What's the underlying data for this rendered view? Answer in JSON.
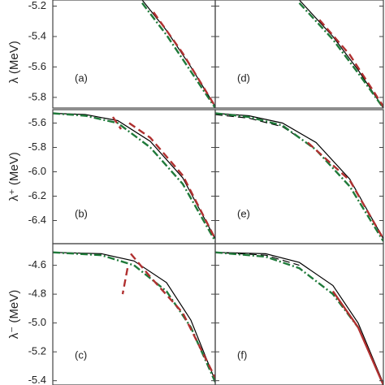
{
  "chart_data": [
    {
      "type": "line",
      "label": "(a)",
      "ylabel": "λ (MeV)",
      "ytick_labels": true,
      "xlim": [
        0,
        1
      ],
      "ylim": [
        -5.87,
        -5.16
      ],
      "yticks": [
        -5.2,
        -5.4,
        -5.6,
        -5.8
      ],
      "series": [
        {
          "color": "#000000",
          "dash": "solid",
          "x": [
            0.55,
            0.7,
            0.85,
            1.0
          ],
          "values": [
            -5.16,
            -5.36,
            -5.6,
            -5.86
          ]
        },
        {
          "color": "#1f7a3a",
          "dash": "dashdot",
          "x": [
            0.55,
            0.7,
            0.85,
            1.0
          ],
          "values": [
            -5.18,
            -5.39,
            -5.63,
            -5.87
          ]
        },
        {
          "color": "#b03030",
          "dash": "dashed",
          "x": [
            0.62,
            0.8,
            1.0
          ],
          "values": [
            -5.24,
            -5.51,
            -5.86
          ]
        }
      ]
    },
    {
      "type": "line",
      "label": "(d)",
      "ytick_labels": false,
      "xlim": [
        0,
        1
      ],
      "ylim": [
        -5.87,
        -5.16
      ],
      "yticks": [
        -5.2,
        -5.4,
        -5.6,
        -5.8
      ],
      "series": [
        {
          "color": "#000000",
          "dash": "solid",
          "x": [
            0.5,
            0.7,
            0.85,
            1.0
          ],
          "values": [
            -5.16,
            -5.4,
            -5.62,
            -5.87
          ]
        },
        {
          "color": "#1f7a3a",
          "dash": "dashdot",
          "x": [
            0.5,
            0.7,
            0.85,
            1.0
          ],
          "values": [
            -5.18,
            -5.42,
            -5.64,
            -5.87
          ]
        },
        {
          "color": "#b03030",
          "dash": "dashed",
          "x": [
            0.62,
            0.8,
            1.0
          ],
          "values": [
            -5.29,
            -5.52,
            -5.86
          ]
        }
      ]
    },
    {
      "type": "line",
      "label": "(b)",
      "ylabel": "λ⁺ (MeV)",
      "ytick_labels": true,
      "xlim": [
        0,
        1
      ],
      "ylim": [
        -6.59,
        -5.49
      ],
      "yticks": [
        -5.6,
        -5.8,
        {
          "value": -6,
          "label": "-6.0"
        },
        -6.2,
        -6.4
      ],
      "series": [
        {
          "color": "#000000",
          "dash": "solid",
          "x": [
            0,
            0.2,
            0.4,
            0.6,
            0.8,
            1.0
          ],
          "values": [
            -5.52,
            -5.53,
            -5.58,
            -5.75,
            -6.05,
            -6.55
          ]
        },
        {
          "color": "#1f7a3a",
          "dash": "dashdot",
          "x": [
            0,
            0.2,
            0.4,
            0.6,
            0.8,
            1.0
          ],
          "values": [
            -5.52,
            -5.54,
            -5.6,
            -5.8,
            -6.1,
            -6.57
          ]
        },
        {
          "color": "#b03030",
          "dash": "dashed",
          "x": [
            0.37,
            0.42,
            null,
            0.47,
            0.6,
            0.8,
            1.0
          ],
          "values": [
            -5.55,
            -5.65,
            null,
            -5.6,
            -5.72,
            -6.03,
            -6.55
          ]
        }
      ]
    },
    {
      "type": "line",
      "label": "(e)",
      "ytick_labels": false,
      "xlim": [
        0,
        1
      ],
      "ylim": [
        -6.59,
        -5.49
      ],
      "yticks": [
        -5.6,
        -5.8,
        {
          "value": -6,
          "label": "-6.0"
        },
        -6.2,
        -6.4
      ],
      "series": [
        {
          "color": "#000000",
          "dash": "solid",
          "x": [
            0,
            0.2,
            0.4,
            0.6,
            0.8,
            1.0
          ],
          "values": [
            -5.52,
            -5.54,
            -5.6,
            -5.76,
            -6.06,
            -6.55
          ]
        },
        {
          "color": "#000000",
          "dash": "dashed",
          "x": [
            0,
            0.2,
            0.4,
            0.5
          ],
          "values": [
            -5.53,
            -5.56,
            -5.63,
            -5.72
          ]
        },
        {
          "color": "#1f7a3a",
          "dash": "dashdot",
          "x": [
            0,
            0.2,
            0.4,
            0.6,
            0.8,
            1.0
          ],
          "values": [
            -5.52,
            -5.55,
            -5.62,
            -5.82,
            -6.12,
            -6.57
          ]
        },
        {
          "color": "#b03030",
          "dash": "dashed",
          "x": [
            0.55,
            0.8,
            1.0
          ],
          "values": [
            -5.76,
            -6.07,
            -6.55
          ]
        }
      ]
    },
    {
      "type": "line",
      "label": "(c)",
      "ylabel": "λ⁻ (MeV)",
      "ytick_labels": true,
      "xlim": [
        0,
        1
      ],
      "ylim": [
        -5.43,
        -4.45
      ],
      "yticks": [
        -4.6,
        -4.8,
        {
          "value": -5,
          "label": "-5.0"
        },
        -5.2,
        -5.4
      ],
      "series": [
        {
          "color": "#000000",
          "dash": "solid",
          "x": [
            0,
            0.3,
            0.5,
            0.7,
            0.85,
            1.0
          ],
          "values": [
            -4.51,
            -4.52,
            -4.57,
            -4.72,
            -4.98,
            -5.4
          ]
        },
        {
          "color": "#1f7a3a",
          "dash": "dashdot",
          "x": [
            0,
            0.3,
            0.5,
            0.7,
            0.85,
            1.0
          ],
          "values": [
            -4.51,
            -4.53,
            -4.6,
            -4.78,
            -5.03,
            -5.41
          ]
        },
        {
          "color": "#b03030",
          "dash": "dashed",
          "x": [
            0.46,
            0.43,
            null,
            0.48,
            0.6,
            0.8,
            1.0
          ],
          "values": [
            -4.62,
            -4.8,
            null,
            -4.52,
            -4.68,
            -4.93,
            -5.38
          ]
        }
      ]
    },
    {
      "type": "line",
      "label": "(f)",
      "ytick_labels": false,
      "xlim": [
        0,
        1
      ],
      "ylim": [
        -5.43,
        -4.45
      ],
      "yticks": [
        -4.6,
        -4.8,
        {
          "value": -5,
          "label": "-5.0"
        },
        -5.2,
        -5.4
      ],
      "series": [
        {
          "color": "#000000",
          "dash": "solid",
          "x": [
            0,
            0.3,
            0.5,
            0.7,
            0.85,
            1.0
          ],
          "values": [
            -4.51,
            -4.52,
            -4.58,
            -4.74,
            -5.0,
            -5.42
          ]
        },
        {
          "color": "#000000",
          "dash": "dashed",
          "x": [
            0,
            0.3,
            0.5
          ],
          "values": [
            -4.51,
            -4.53,
            -4.6
          ]
        },
        {
          "color": "#1f7a3a",
          "dash": "dashdot",
          "x": [
            0,
            0.3,
            0.5,
            0.7,
            0.85
          ],
          "values": [
            -4.51,
            -4.54,
            -4.62,
            -4.8,
            -5.03
          ]
        },
        {
          "color": "#b03030",
          "dash": "solid",
          "x": [
            0.7,
            0.85,
            1.0
          ],
          "values": [
            -4.78,
            -5.03,
            -5.43
          ]
        }
      ]
    }
  ]
}
